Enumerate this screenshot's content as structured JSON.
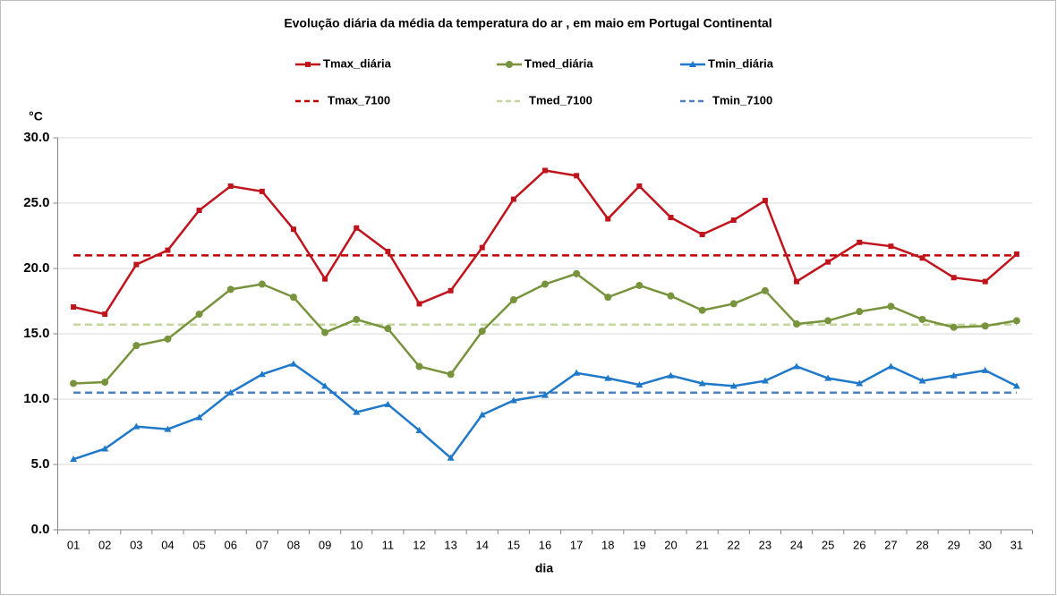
{
  "chart_data": {
    "type": "line",
    "title": "Evolução diária da média da temperatura do ar , em maio em Portugal Continental",
    "y_label": "°C",
    "x_label": "dia",
    "categories": [
      "01",
      "02",
      "03",
      "04",
      "05",
      "06",
      "07",
      "08",
      "09",
      "10",
      "11",
      "12",
      "13",
      "14",
      "15",
      "16",
      "17",
      "18",
      "19",
      "20",
      "21",
      "22",
      "23",
      "24",
      "25",
      "26",
      "27",
      "28",
      "29",
      "30",
      "31"
    ],
    "series": [
      {
        "name": "Tmax_diária",
        "color": "#c0141c",
        "marker": "square",
        "values": [
          17.05,
          16.5,
          20.3,
          21.4,
          24.45,
          26.3,
          25.9,
          23.0,
          19.2,
          23.1,
          21.3,
          17.3,
          18.3,
          21.6,
          25.3,
          27.5,
          27.1,
          23.8,
          26.3,
          23.9,
          22.6,
          23.7,
          25.2,
          19.0,
          20.5,
          22.0,
          21.7,
          20.8,
          19.3,
          19.0,
          21.1
        ]
      },
      {
        "name": "Tmed_diária",
        "color": "#77933c",
        "marker": "circle",
        "values": [
          11.2,
          11.3,
          14.1,
          14.6,
          16.5,
          18.4,
          18.8,
          17.8,
          15.1,
          16.1,
          15.4,
          12.5,
          11.9,
          15.2,
          17.6,
          18.8,
          19.6,
          17.8,
          18.7,
          17.9,
          16.8,
          17.3,
          18.3,
          15.75,
          16.0,
          16.7,
          17.1,
          16.1,
          15.5,
          15.6,
          16.0
        ]
      },
      {
        "name": "Tmin_diária",
        "color": "#1f78c8",
        "marker": "triangle",
        "values": [
          5.4,
          6.2,
          7.9,
          7.7,
          8.6,
          10.5,
          11.9,
          12.7,
          11.0,
          9.0,
          9.6,
          7.6,
          5.5,
          8.8,
          9.9,
          10.3,
          12.0,
          11.6,
          11.1,
          11.8,
          11.2,
          11.0,
          11.4,
          12.5,
          11.6,
          11.2,
          12.5,
          11.4,
          11.8,
          12.2,
          11.0
        ]
      }
    ],
    "reference_lines": [
      {
        "name": "Tmax_7100",
        "color": "#c00000",
        "value": 21.0
      },
      {
        "name": "Tmed_7100",
        "color": "#c3d69b",
        "value": 15.7
      },
      {
        "name": "Tmin_7100",
        "color": "#4f81bd",
        "value": 10.5
      }
    ],
    "ylim": [
      0,
      30
    ],
    "yticks": [
      {
        "value": 0,
        "label": "0.0"
      },
      {
        "value": 5,
        "label": "5.0"
      },
      {
        "value": 10,
        "label": "10.0"
      },
      {
        "value": 15,
        "label": "15.0"
      },
      {
        "value": 20,
        "label": "20.0"
      },
      {
        "value": 25,
        "label": "25.0"
      },
      {
        "value": 30,
        "label": "30.0"
      }
    ],
    "grid": true
  }
}
